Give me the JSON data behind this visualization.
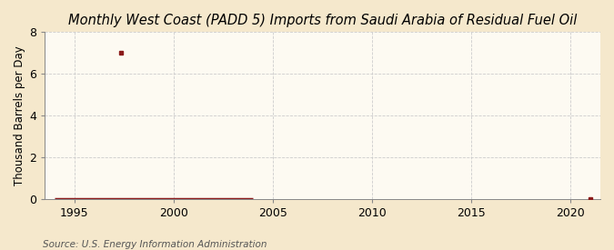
{
  "title": "Monthly West Coast (PADD 5) Imports from Saudi Arabia of Residual Fuel Oil",
  "ylabel": "Thousand Barrels per Day",
  "source": "Source: U.S. Energy Information Administration",
  "background_color": "#f5e8cc",
  "plot_background_color": "#fdfaf2",
  "line_color": "#8b1a1a",
  "marker_color": "#8b1a1a",
  "xlim": [
    1993.5,
    2021.5
  ],
  "ylim": [
    0,
    8
  ],
  "yticks": [
    0,
    2,
    4,
    6,
    8
  ],
  "xticks": [
    1995,
    2000,
    2005,
    2010,
    2015,
    2020
  ],
  "grid_color": "#cccccc",
  "line_x_start": 1994.0,
  "line_x_end": 2004.0,
  "spike_x": 1997.333,
  "spike_y": 7.0,
  "dot2021_x": 2021.0,
  "dot2021_y": 0.0,
  "title_fontsize": 10.5,
  "label_fontsize": 8.5,
  "tick_fontsize": 9,
  "source_fontsize": 7.5
}
